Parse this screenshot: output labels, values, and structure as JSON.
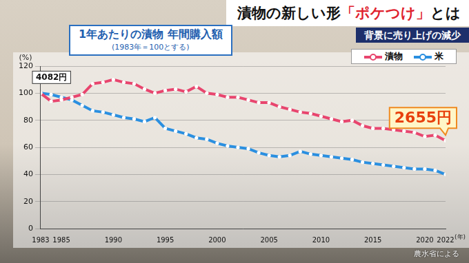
{
  "headline": {
    "title": "漬物の新しい形「ポケつけ」とは",
    "subtitle": "背景に売り上げの減少"
  },
  "chart_data": {
    "type": "line",
    "title": "1年あたりの漬物 年間購入額",
    "subtitle": "(1983年＝100とする)",
    "x_label": "(年)",
    "y_label": "(%)",
    "categories": [
      "1983",
      null,
      "1985",
      null,
      null,
      null,
      null,
      "1990",
      null,
      null,
      null,
      null,
      "1995",
      null,
      null,
      null,
      null,
      "2000",
      null,
      null,
      null,
      null,
      "2005",
      null,
      null,
      null,
      null,
      "2010",
      null,
      null,
      null,
      null,
      "2015",
      null,
      null,
      null,
      null,
      "2020",
      null,
      "2022"
    ],
    "series": [
      {
        "name": "漬物",
        "color": "#e8456e",
        "values": [
          100,
          94,
          95,
          97,
          99,
          107,
          108,
          110,
          108,
          107,
          103,
          100,
          102,
          103,
          101,
          105,
          100,
          99,
          97,
          97,
          95,
          93,
          93,
          90,
          88,
          86,
          85,
          83,
          81,
          79,
          80,
          76,
          74,
          74,
          73,
          72,
          71,
          68,
          69,
          65
        ]
      },
      {
        "name": "米",
        "color": "#2a8fe0",
        "values": [
          100,
          99,
          97,
          95,
          91,
          87,
          86,
          84,
          82,
          81,
          79,
          82,
          74,
          72,
          70,
          67,
          66,
          63,
          61,
          60,
          59,
          56,
          54,
          53,
          54,
          57,
          55,
          54,
          53,
          52,
          51,
          49,
          48,
          47,
          46,
          45,
          44,
          44,
          43,
          40
        ]
      }
    ],
    "ylim": [
      0,
      120
    ],
    "yticks": [
      0,
      20,
      40,
      60,
      80,
      100,
      120
    ],
    "grid": true,
    "legend": "top-right",
    "marker": "circle",
    "annotations": [
      {
        "text": "4082円",
        "series": "漬物",
        "category": "1983"
      },
      {
        "text": "2655円",
        "series": "漬物",
        "category": "2022"
      }
    ]
  },
  "source": "農水省による"
}
